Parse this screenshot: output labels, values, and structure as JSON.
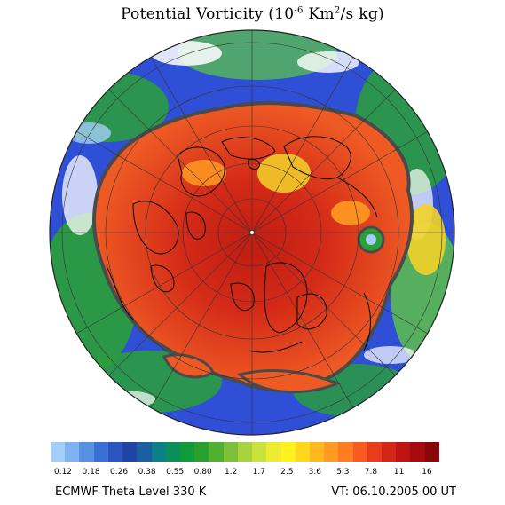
{
  "title": {
    "main": "Potential Vorticity (10",
    "exp1": "-6",
    "mid": " Km",
    "exp2": "2",
    "end": "/s kg)"
  },
  "colorbar": {
    "colors": [
      "#a4cdf8",
      "#7eb2f0",
      "#5a90e4",
      "#3a6fd6",
      "#2a54c0",
      "#1e45a6",
      "#1a5fa2",
      "#0d7f8a",
      "#0a8f5a",
      "#0f9c38",
      "#2aa02c",
      "#4fb032",
      "#7cc03a",
      "#a8d23c",
      "#cce23c",
      "#eeec30",
      "#fff21e",
      "#ffd81e",
      "#ffb820",
      "#ff9a22",
      "#ff7c22",
      "#f85a20",
      "#e83c1a",
      "#d42616",
      "#be1412",
      "#a40a0e",
      "#880608"
    ],
    "labels": [
      "0.12",
      "0.18",
      "0.26",
      "0.38",
      "0.55",
      "0.80",
      "1.2",
      "1.7",
      "2.5",
      "3.6",
      "5.3",
      "7.8",
      "11",
      "16"
    ]
  },
  "footer": {
    "left": "ECMWF Theta Level 330 K",
    "right": "VT: 06.10.2005 00 UT"
  },
  "map": {
    "projection": "polar stereographic, north pole",
    "colors": {
      "outer_blue": "#2f4fd6",
      "outer_green": "#2aa036",
      "mid_green": "#5cc04a",
      "interior_orange": "#ee5a24",
      "interior_red": "#d42a18",
      "pole_red": "#c01c12",
      "yellow": "#f2d32a",
      "contour": "#4a4a4a",
      "coastline": "#111111"
    }
  }
}
